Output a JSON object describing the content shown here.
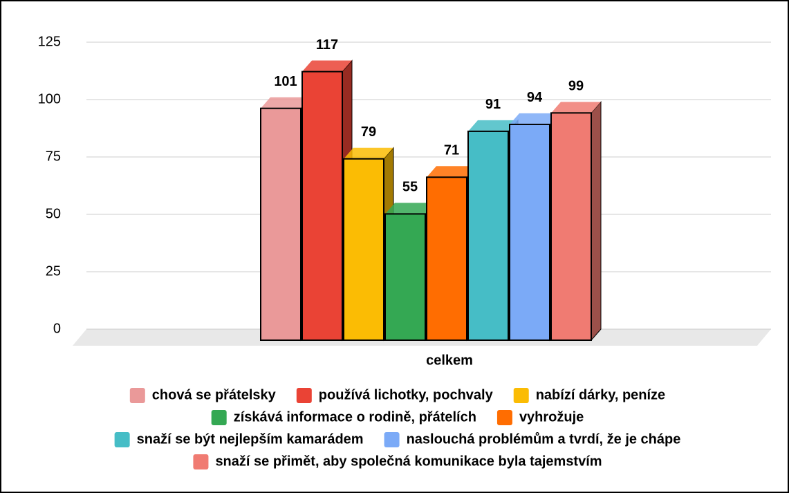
{
  "chart_data": {
    "type": "bar3d",
    "categories": [
      "celkem"
    ],
    "series": [
      {
        "name": "chová se přátelsky",
        "color": "#ea9999",
        "values": [
          101
        ]
      },
      {
        "name": "používá lichotky, pochvaly",
        "color": "#ea4335",
        "values": [
          117
        ]
      },
      {
        "name": "nabízí dárky, peníze",
        "color": "#fbbc04",
        "values": [
          79
        ]
      },
      {
        "name": "získává informace o rodině, přátelích",
        "color": "#34a853",
        "values": [
          55
        ]
      },
      {
        "name": "vyhrožuje",
        "color": "#ff6d01",
        "values": [
          71
        ]
      },
      {
        "name": "snaží se být nejlepším kamarádem",
        "color": "#46bdc6",
        "values": [
          91
        ]
      },
      {
        "name": "naslouchá problémům a tvrdí, že je chápe",
        "color": "#7baaf7",
        "values": [
          94
        ]
      },
      {
        "name": "snaží se přimět, aby společná komunikace byla tajemstvím",
        "color": "#f07b72",
        "values": [
          99
        ]
      }
    ],
    "ylim": [
      0,
      125
    ],
    "yticks": [
      0,
      25,
      50,
      75,
      100,
      125
    ],
    "grid": true,
    "legend": "bottom"
  }
}
